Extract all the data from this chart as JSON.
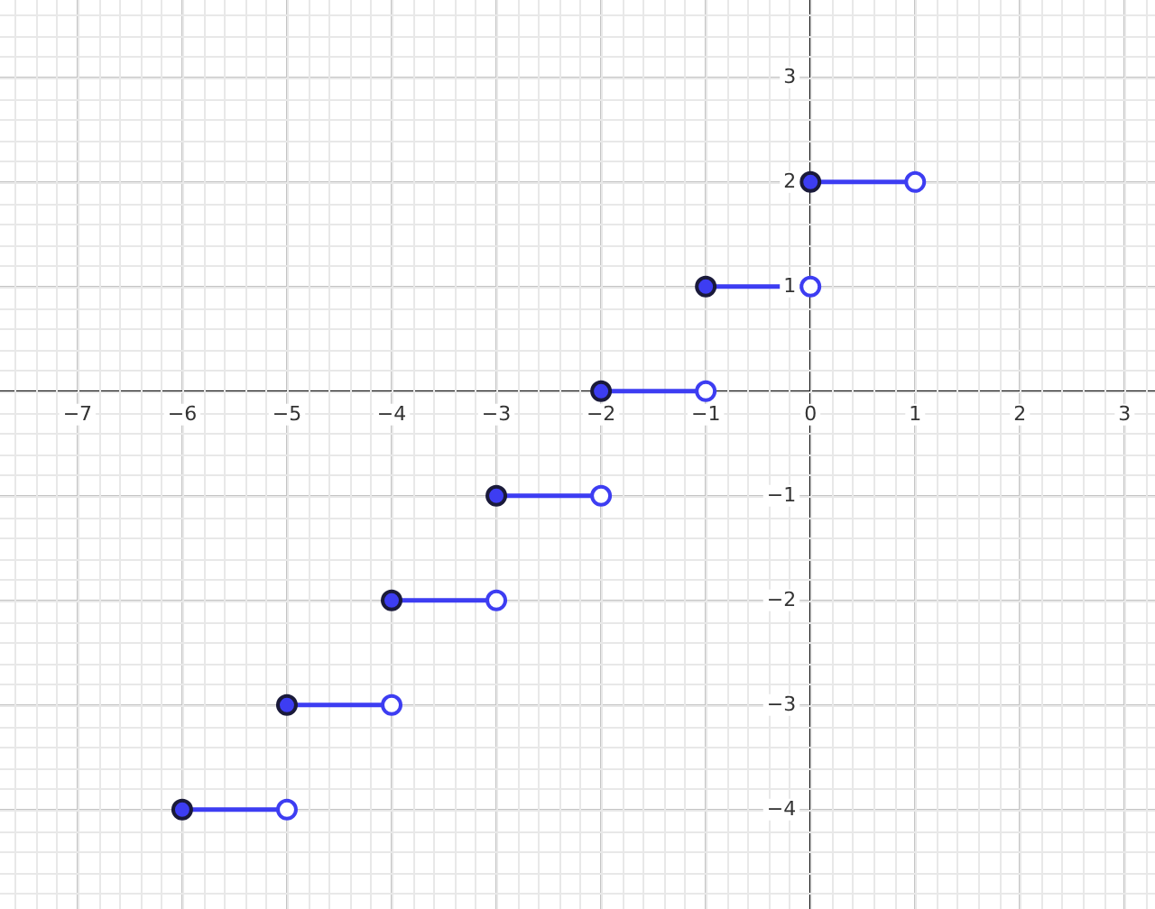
{
  "chart_data": {
    "type": "line",
    "marker": "circle",
    "grid": true,
    "xlim": [
      -7.74,
      3.29
    ],
    "ylim": [
      -4.95,
      3.74
    ],
    "xticks": [
      -7,
      -6,
      -5,
      -4,
      -3,
      -2,
      -1,
      0,
      1,
      2,
      3
    ],
    "yticks": [
      -4,
      -3,
      -2,
      -1,
      1,
      2,
      3
    ],
    "series": [
      {
        "color": "#3d3df2",
        "x": [
          -6,
          -5
        ],
        "values": [
          -4,
          -4
        ]
      },
      {
        "color": "#3d3df2",
        "x": [
          -5,
          -4
        ],
        "values": [
          -3,
          -3
        ]
      },
      {
        "color": "#3d3df2",
        "x": [
          -4,
          -3
        ],
        "values": [
          -2,
          -2
        ]
      },
      {
        "color": "#3d3df2",
        "x": [
          -3,
          -2
        ],
        "values": [
          -1,
          -1
        ]
      },
      {
        "color": "#3d3df2",
        "x": [
          -2,
          -1
        ],
        "values": [
          0,
          0
        ]
      },
      {
        "color": "#3d3df2",
        "x": [
          -1,
          0
        ],
        "values": [
          1,
          1
        ]
      },
      {
        "color": "#3d3df2",
        "x": [
          0,
          1
        ],
        "values": [
          2,
          2
        ]
      }
    ]
  }
}
